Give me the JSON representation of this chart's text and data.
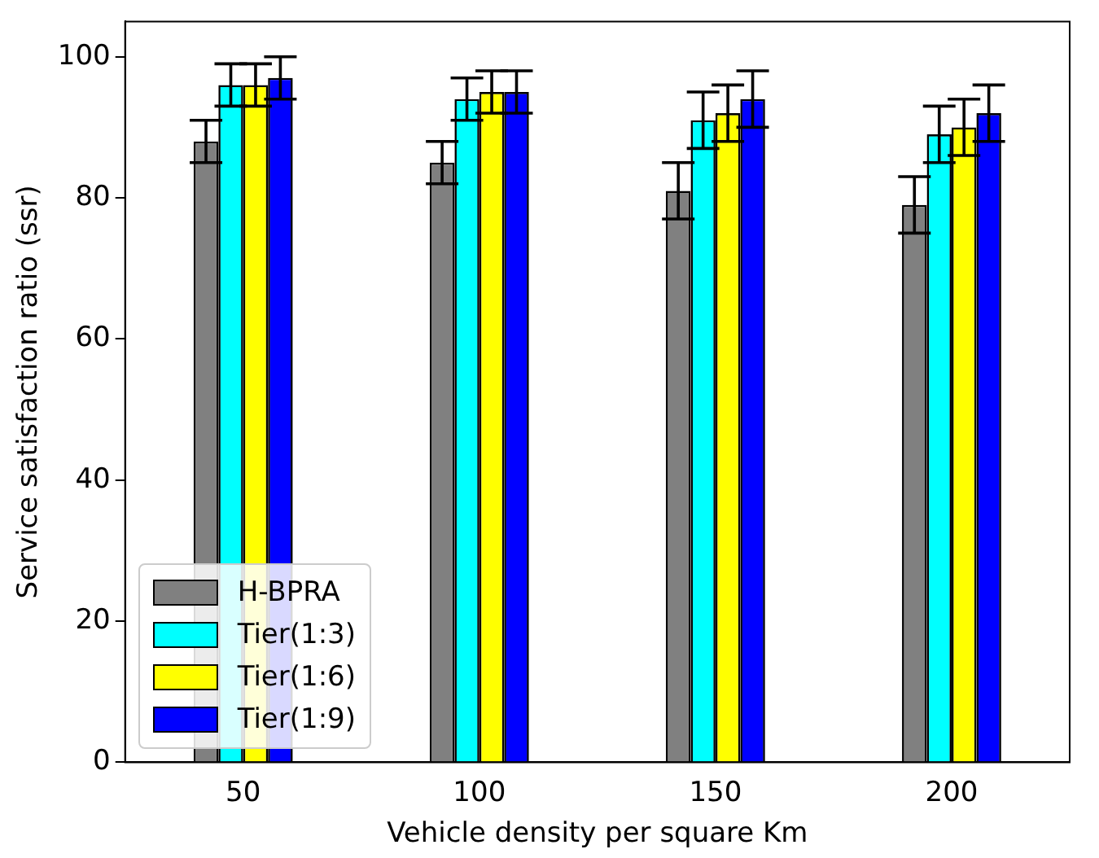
{
  "chart_data": {
    "type": "bar",
    "xlabel": "Vehicle density per square Km",
    "ylabel": "Service satisfaction ratio (ssr)",
    "categories": [
      "50",
      "100",
      "150",
      "200"
    ],
    "series": [
      {
        "name": "H-BPRA",
        "color": "#808080",
        "values": [
          88,
          85,
          81,
          79
        ],
        "errors": [
          3,
          3,
          4,
          4
        ]
      },
      {
        "name": "Tier(1:3)",
        "color": "#00ffff",
        "values": [
          96,
          94,
          91,
          89
        ],
        "errors": [
          3,
          3,
          4,
          4
        ]
      },
      {
        "name": "Tier(1:6)",
        "color": "#ffff00",
        "values": [
          96,
          95,
          92,
          90
        ],
        "errors": [
          3,
          3,
          4,
          4
        ]
      },
      {
        "name": "Tier(1:9)",
        "color": "#0000ff",
        "values": [
          97,
          95,
          94,
          92
        ],
        "errors": [
          3,
          3,
          4,
          4
        ]
      }
    ],
    "ylim": [
      0,
      105
    ],
    "yticks": [
      0,
      20,
      40,
      60,
      80,
      100
    ],
    "grid": false,
    "legend": "bottom left"
  }
}
